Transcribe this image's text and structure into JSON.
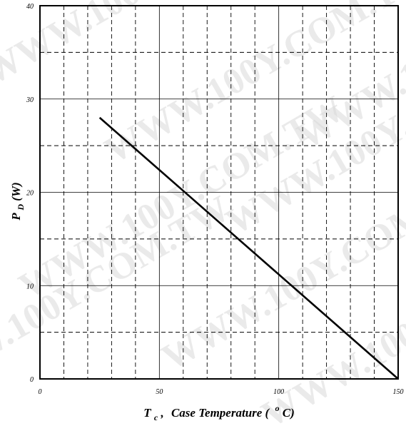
{
  "chart_data": {
    "type": "line",
    "title": "",
    "xlabel_parts": {
      "symbol": "T",
      "subscript": "c",
      "sep": ",",
      "text": "Case Temperature (",
      "superscript": "o",
      "unit": "C)"
    },
    "ylabel_parts": {
      "symbol": "P",
      "subscript": "D",
      "unit": "(W)"
    },
    "xlim": [
      0,
      150
    ],
    "ylim": [
      0,
      40
    ],
    "x_ticks": [
      0,
      50,
      100,
      150
    ],
    "y_ticks": [
      0,
      10,
      20,
      30,
      40
    ],
    "x_tick_labels": [
      "0",
      "50",
      "100",
      "150"
    ],
    "y_tick_labels": [
      "0",
      "10",
      "20",
      "30",
      "40"
    ],
    "grid": {
      "major_x": [
        50,
        100
      ],
      "major_y": [
        10,
        20,
        30
      ],
      "minor_x": [
        10,
        20,
        30,
        40,
        60,
        70,
        80,
        90,
        110,
        120,
        130,
        140
      ],
      "minor_y": [
        5,
        15,
        25,
        35
      ]
    },
    "series": [
      {
        "x": [
          25,
          150
        ],
        "y": [
          28,
          0
        ]
      }
    ]
  },
  "watermark": "WWW.100Y.COM.TW"
}
